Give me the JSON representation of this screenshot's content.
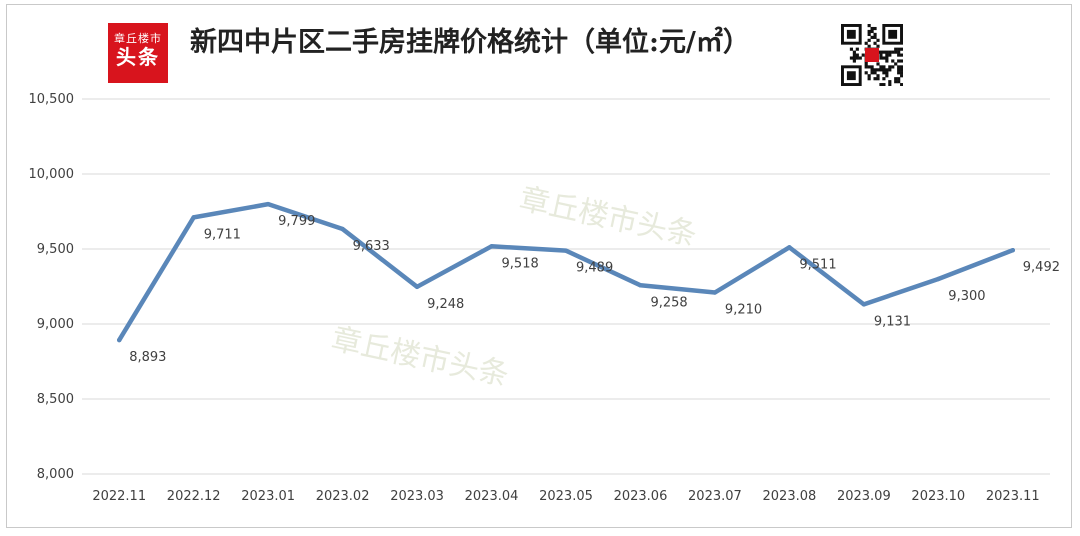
{
  "header": {
    "logo_line1": "章丘楼市",
    "logo_line2": "头条",
    "title": "新四中片区二手房挂牌价格统计（单位:元/㎡）"
  },
  "watermark": [
    "章丘楼市头条",
    "章丘楼市头条"
  ],
  "colors": {
    "line": "#5a87b9",
    "grid": "#d9d9d9",
    "logo_bg": "#d8141d"
  },
  "icons": {
    "qr": "qr-code-icon"
  },
  "chart_data": {
    "type": "line",
    "title": "新四中片区二手房挂牌价格统计（单位:元/㎡）",
    "categories": [
      "2022.11",
      "2022.12",
      "2023.01",
      "2023.02",
      "2023.03",
      "2023.04",
      "2023.05",
      "2023.06",
      "2023.07",
      "2023.08",
      "2023.09",
      "2023.10",
      "2023.11"
    ],
    "values": [
      8893,
      9711,
      9799,
      9633,
      9248,
      9518,
      9489,
      9258,
      9210,
      9511,
      9131,
      9300,
      9492
    ],
    "data_labels": [
      "8,893",
      "9,711",
      "9,799",
      "9,633",
      "9,248",
      "9,518",
      "9,489",
      "9,258",
      "9,210",
      "9,511",
      "9,131",
      "9,300",
      "9,492"
    ],
    "ylim": [
      8000,
      10500
    ],
    "yticks": [
      8000,
      8500,
      9000,
      9500,
      10000,
      10500
    ],
    "ytick_labels": [
      "8,000",
      "8,500",
      "9,000",
      "9,500",
      "10,000",
      "10,500"
    ],
    "grid": true,
    "legend": "none"
  }
}
